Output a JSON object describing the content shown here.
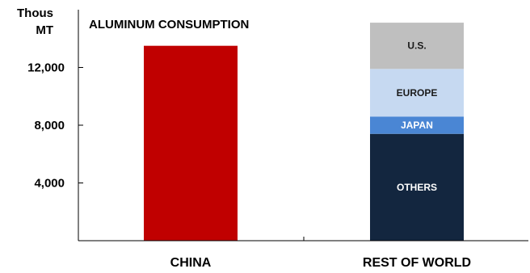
{
  "chart_data": {
    "type": "bar",
    "stacked": true,
    "title": "ALUMINUM CONSUMPTION",
    "ylabel_line1": "Thous",
    "ylabel_line2": "MT",
    "yticks": [
      4000,
      8000,
      12000
    ],
    "ytick_labels": [
      "4,000",
      "8,000",
      "12,000"
    ],
    "ylim": [
      0,
      16000
    ],
    "grid": false,
    "categories": [
      "CHINA",
      "REST OF WORLD"
    ],
    "series": [
      {
        "name": "",
        "color": "#c00000",
        "values": [
          13500,
          0
        ]
      },
      {
        "name": "OTHERS",
        "color": "#13263f",
        "values": [
          0,
          7400
        ]
      },
      {
        "name": "JAPAN",
        "color": "#4a86d4",
        "values": [
          0,
          1200
        ]
      },
      {
        "name": "EUROPE",
        "color": "#c6d9f1",
        "values": [
          0,
          3300
        ]
      },
      {
        "name": "U.S.",
        "color": "#bfbfbf",
        "values": [
          0,
          3200
        ]
      }
    ]
  }
}
